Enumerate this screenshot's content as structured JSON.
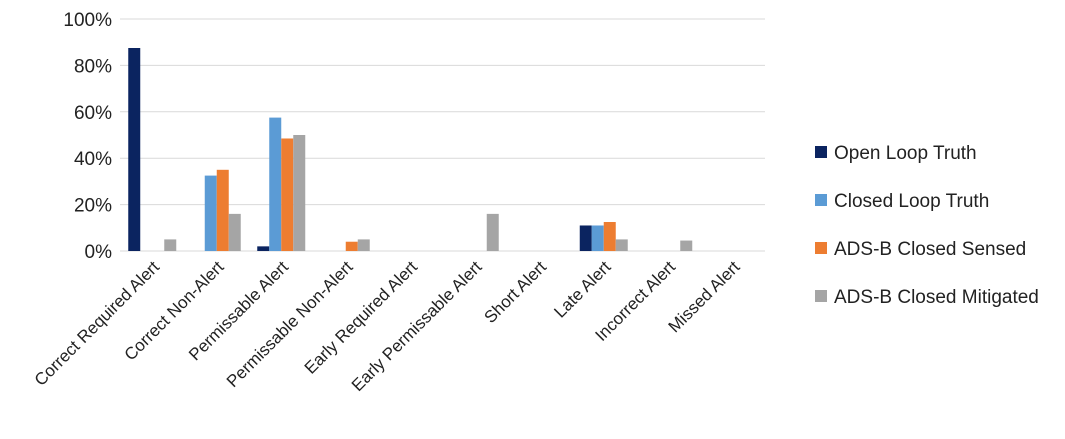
{
  "chart_data": {
    "type": "bar",
    "categories": [
      "Correct Required Alert",
      "Correct Non-Alert",
      "Permissable Alert",
      "Permissable Non-Alert",
      "Early Required Alert",
      "Early Permissable Alert",
      "Short Alert",
      "Late Alert",
      "Incorrect Alert",
      "Missed Alert"
    ],
    "series": [
      {
        "name": "Open Loop Truth",
        "color": "#0b2460",
        "values": [
          87.5,
          0,
          2,
          0,
          0,
          0,
          0,
          11,
          0,
          0
        ]
      },
      {
        "name": "Closed Loop Truth",
        "color": "#5b9bd5",
        "values": [
          0,
          32.5,
          57.5,
          0,
          0,
          0,
          0,
          11,
          0,
          0
        ]
      },
      {
        "name": "ADS-B Closed Sensed",
        "color": "#ed7d31",
        "values": [
          0,
          35,
          48.5,
          4,
          0,
          0,
          0,
          12.5,
          0,
          0
        ]
      },
      {
        "name": "ADS-B Closed Mitigated",
        "color": "#a5a5a5",
        "values": [
          5,
          16,
          50,
          5,
          0,
          16,
          0,
          5,
          4.5,
          0
        ]
      }
    ],
    "yticks": [
      "0%",
      "20%",
      "40%",
      "60%",
      "80%",
      "100%"
    ],
    "ylim": [
      0,
      100
    ],
    "grid": true,
    "legend_position": "right"
  }
}
